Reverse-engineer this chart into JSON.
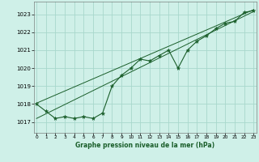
{
  "hours": [
    0,
    1,
    2,
    3,
    4,
    5,
    6,
    7,
    8,
    9,
    10,
    11,
    12,
    13,
    14,
    15,
    16,
    17,
    18,
    19,
    20,
    21,
    22,
    23
  ],
  "pressure": [
    1018.0,
    1017.6,
    1017.2,
    1017.3,
    1017.2,
    1017.3,
    1017.2,
    1017.5,
    1019.0,
    1019.6,
    1020.0,
    1020.5,
    1020.4,
    1020.7,
    1021.0,
    1020.0,
    1021.0,
    1021.5,
    1021.8,
    1022.2,
    1022.5,
    1022.6,
    1023.1,
    1023.2
  ],
  "background_color": "#cff0e8",
  "grid_color": "#a8d8cc",
  "line_color": "#1a5e2a",
  "marker_color": "#1a5e2a",
  "ylabel_ticks": [
    1017,
    1018,
    1019,
    1020,
    1021,
    1022,
    1023
  ],
  "ylim": [
    1016.4,
    1023.7
  ],
  "xlim": [
    -0.3,
    23.3
  ],
  "xlabel": "Graphe pression niveau de la mer (hPa)",
  "channel_line1": [
    1017.2,
    1023.15
  ],
  "channel_line2": [
    1018.05,
    1023.25
  ]
}
